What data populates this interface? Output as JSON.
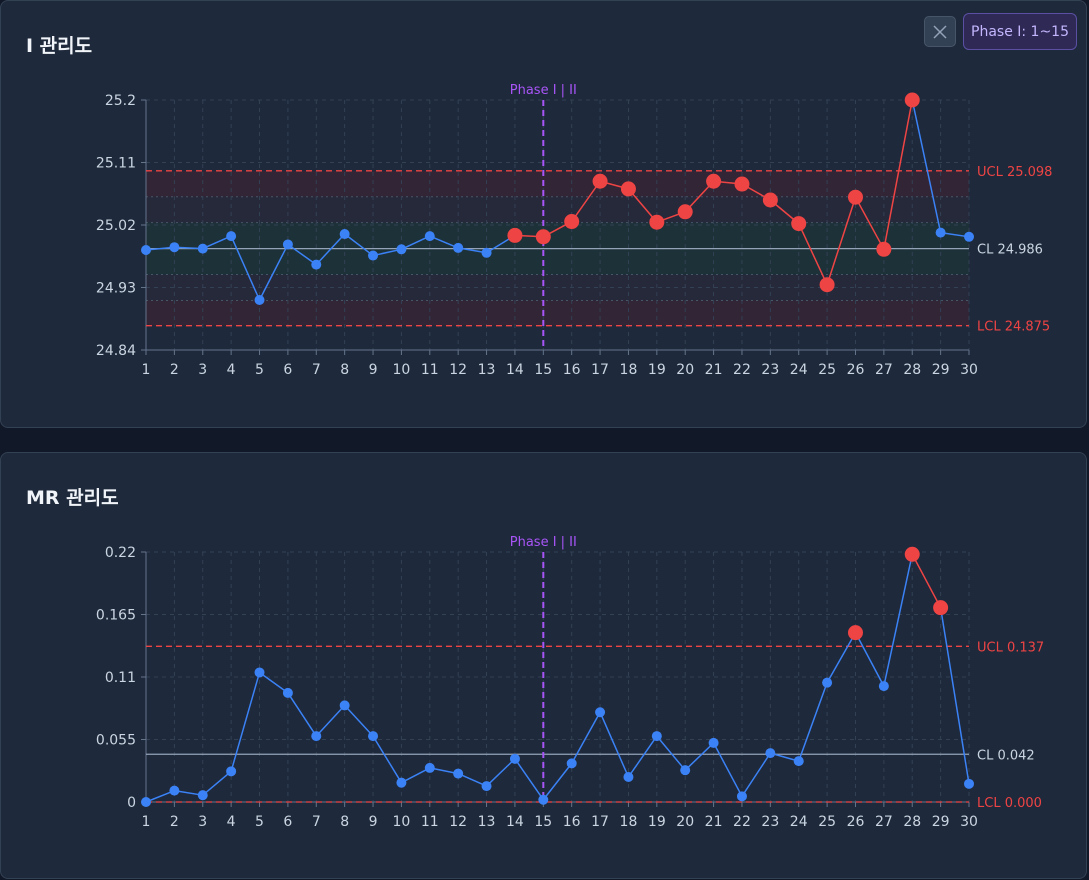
{
  "colors": {
    "background": "#111827",
    "panel": "#1e293b",
    "point_normal": "#3b82f6",
    "point_violation": "#ef4444",
    "limit_line": "#ef4444",
    "center_line": "#94a3b8",
    "phase_line": "#a855f7",
    "zone_outer": "#3a2333",
    "zone_inner": "#1c3538"
  },
  "toolbar": {
    "close_icon": "close-icon",
    "phase_button_label": "Phase I: 1~15"
  },
  "chart_data": [
    {
      "type": "line",
      "title": "I 관리도",
      "x": [
        1,
        2,
        3,
        4,
        5,
        6,
        7,
        8,
        9,
        10,
        11,
        12,
        13,
        14,
        15,
        16,
        17,
        18,
        19,
        20,
        21,
        22,
        23,
        24,
        25,
        26,
        27,
        28,
        29,
        30
      ],
      "series": [
        {
          "values": [
            24.984,
            24.988,
            24.986,
            25.004,
            24.912,
            24.992,
            24.963,
            25.007,
            24.976,
            24.985,
            25.004,
            24.987,
            24.98,
            25.005,
            25.003,
            25.025,
            25.083,
            25.072,
            25.024,
            25.039,
            25.083,
            25.079,
            25.056,
            25.022,
            24.934,
            25.06,
            24.985,
            25.2,
            25.009,
            25.003
          ],
          "violations": [
            14,
            15,
            16,
            17,
            18,
            19,
            20,
            21,
            22,
            23,
            24,
            25,
            26,
            27,
            28
          ]
        }
      ],
      "ylim": [
        24.84,
        25.2
      ],
      "yticks": [
        "24.84",
        "24.93",
        "25.02",
        "25.11",
        "25.2"
      ],
      "ucl": 25.098,
      "cl": 24.986,
      "lcl": 24.875,
      "ucl_label": "UCL 25.098",
      "cl_label": "CL 24.986",
      "lcl_label": "LCL 24.875",
      "phase_split": 15,
      "phase_label": "Phase I | II",
      "grid": true
    },
    {
      "type": "line",
      "title": "MR 관리도",
      "x": [
        1,
        2,
        3,
        4,
        5,
        6,
        7,
        8,
        9,
        10,
        11,
        12,
        13,
        14,
        15,
        16,
        17,
        18,
        19,
        20,
        21,
        22,
        23,
        24,
        25,
        26,
        27,
        28,
        29,
        30
      ],
      "series": [
        {
          "values": [
            0.0,
            0.01,
            0.006,
            0.027,
            0.114,
            0.096,
            0.058,
            0.085,
            0.058,
            0.017,
            0.03,
            0.025,
            0.014,
            0.038,
            0.002,
            0.034,
            0.079,
            0.022,
            0.058,
            0.028,
            0.052,
            0.005,
            0.043,
            0.036,
            0.105,
            0.149,
            0.102,
            0.218,
            0.171,
            0.016
          ],
          "violations": [
            26,
            28,
            29
          ]
        }
      ],
      "ylim": [
        0,
        0.22
      ],
      "yticks": [
        "0",
        "0.055",
        "0.11",
        "0.165",
        "0.22"
      ],
      "ucl": 0.137,
      "cl": 0.042,
      "lcl": 0.0,
      "ucl_label": "UCL 0.137",
      "cl_label": "CL 0.042",
      "lcl_label": "LCL 0.000",
      "phase_split": 15,
      "phase_label": "Phase I | II",
      "grid": true
    }
  ]
}
